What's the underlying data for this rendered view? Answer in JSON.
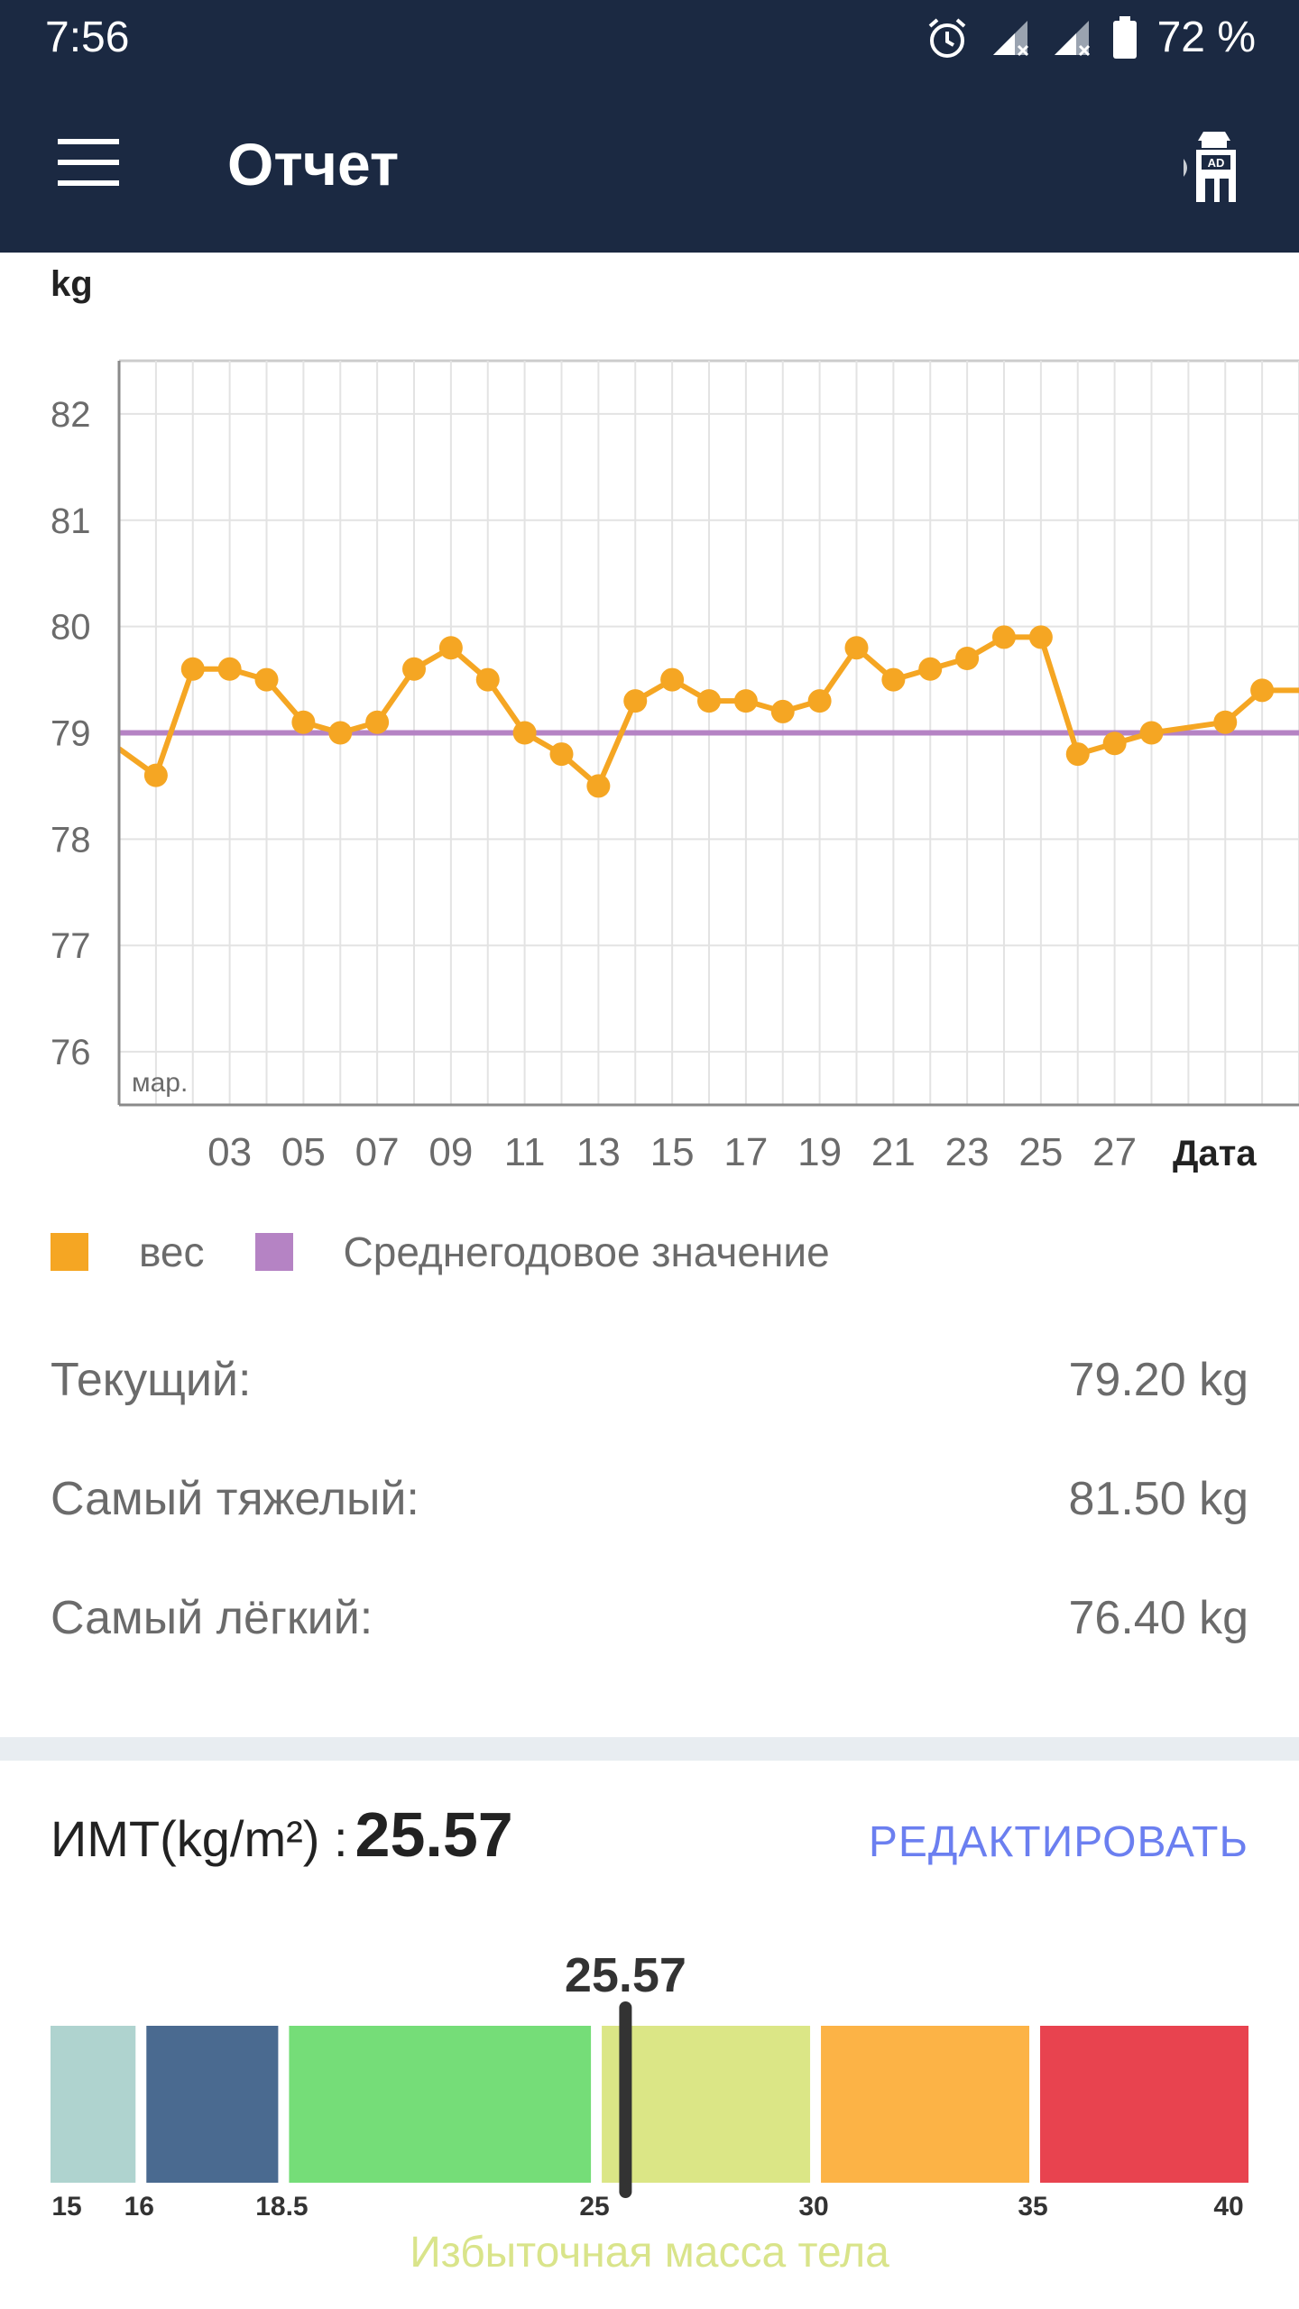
{
  "status_bar": {
    "time": "7:56",
    "battery": "72 %"
  },
  "header": {
    "title": "Отчет"
  },
  "chart_data": {
    "type": "line",
    "ylabel": "kg",
    "xlabel": "Дата",
    "month_label": "мар.",
    "ylim": [
      75.5,
      82.5
    ],
    "y_ticks": [
      82,
      81,
      80,
      79,
      78,
      77,
      76
    ],
    "x_range": [
      0.0,
      32.0
    ],
    "x_ticks": [
      3,
      5,
      7,
      9,
      11,
      13,
      15,
      17,
      19,
      21,
      23,
      25,
      27
    ],
    "x_tick_labels": [
      "03",
      "05",
      "07",
      "09",
      "11",
      "13",
      "15",
      "17",
      "19",
      "21",
      "23",
      "25",
      "27"
    ],
    "grid": true,
    "series": [
      {
        "name": "вес",
        "color": "#f5a623",
        "x": [
          1,
          2,
          3,
          4,
          5,
          6,
          7,
          8,
          9,
          10,
          11,
          12,
          13,
          14,
          15,
          16,
          17,
          18,
          19,
          20,
          21,
          22,
          23,
          24,
          25,
          26,
          27,
          28,
          30,
          31
        ],
        "values": [
          78.6,
          79.6,
          79.6,
          79.5,
          79.1,
          79.0,
          79.1,
          79.6,
          79.8,
          79.5,
          79.0,
          78.8,
          78.5,
          79.3,
          79.5,
          79.3,
          79.3,
          79.2,
          79.3,
          79.8,
          79.5,
          79.6,
          79.7,
          79.9,
          79.9,
          78.8,
          78.9,
          79.0,
          79.1,
          79.4
        ]
      },
      {
        "name": "Среднегодовое значение",
        "color": "#b583c4",
        "value": 79.0
      }
    ]
  },
  "stats": [
    {
      "label": "Текущий:",
      "value": "79.20 kg"
    },
    {
      "label": "Самый тяжелый:",
      "value": "81.50 kg"
    },
    {
      "label": "Самый лёгкий:",
      "value": "76.40 kg"
    }
  ],
  "bmi": {
    "label": "ИМТ(kg/m²) :",
    "value": "25.57",
    "value_num": 25.57,
    "edit_label": "РЕДАКТИРОВАТЬ",
    "category": "Избыточная масса тела",
    "segments": [
      {
        "from": 15,
        "to": 16,
        "color": "#afd3cf"
      },
      {
        "from": 16,
        "to": 18.5,
        "color": "#4a6a90"
      },
      {
        "from": 18.5,
        "to": 25,
        "color": "#75dd78"
      },
      {
        "from": 25,
        "to": 30,
        "color": "#dbe686"
      },
      {
        "from": 30,
        "to": 35,
        "color": "#fcb346"
      },
      {
        "from": 35,
        "to": 40,
        "color": "#e8434f"
      }
    ],
    "tick_labels": [
      "15",
      "16",
      "18.5",
      "25",
      "30",
      "35",
      "40"
    ]
  }
}
